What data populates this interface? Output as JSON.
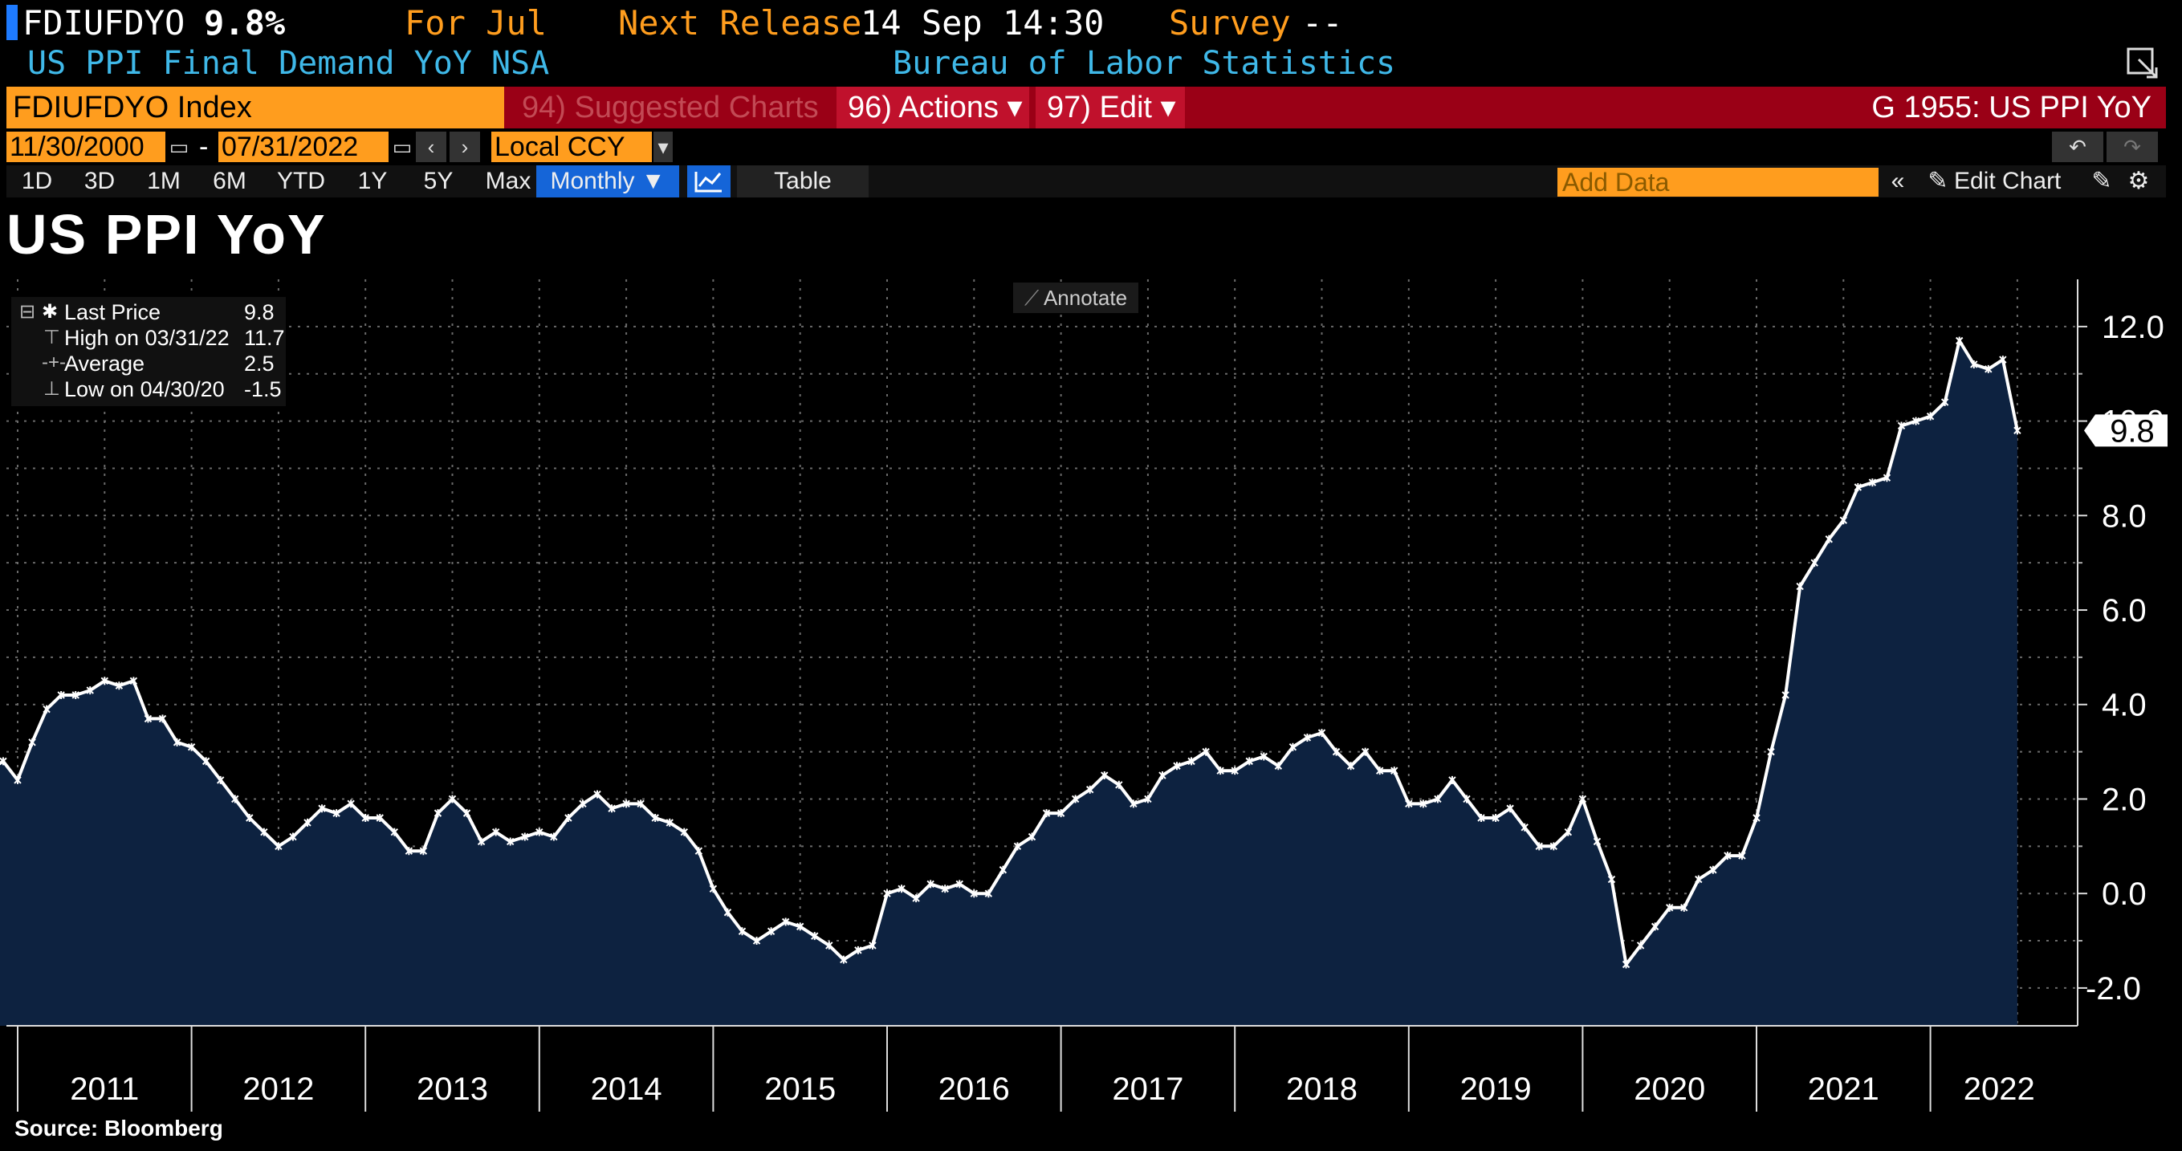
{
  "header": {
    "ticker": "FDIUFDYO",
    "last_value": "9.8%",
    "for_label": "For Jul",
    "next_release_label": "Next Release",
    "next_release_value": "14 Sep 14:30",
    "survey_label": "Survey",
    "survey_value": "--",
    "description": "US PPI Final Demand YoY NSA",
    "source_org": "Bureau of Labor Statistics"
  },
  "tabs": {
    "index": "FDIUFDYO Index",
    "suggested": "94) Suggested Charts",
    "actions": "96) Actions ▾",
    "edit": "97) Edit ▾",
    "chart_id": "G 1955: US PPI YoY"
  },
  "dates": {
    "start": "11/30/2000",
    "sep": "-",
    "end": "07/31/2022",
    "currency": "Local CCY"
  },
  "periods": [
    "1D",
    "3D",
    "1M",
    "6M",
    "YTD",
    "1Y",
    "5Y",
    "Max"
  ],
  "frequency": "Monthly ▼",
  "table_label": "Table",
  "add_data_placeholder": "Add Data",
  "edit_chart_label": "Edit Chart",
  "annotate_label": "Annotate",
  "source": "Source: Bloomberg",
  "legend": {
    "last_price_label": "Last Price",
    "last_price_value": "9.8",
    "high_label": "High on 03/31/22",
    "high_value": "11.7",
    "average_label": "Average",
    "average_value": "2.5",
    "low_label": "Low on 04/30/20",
    "low_value": "-1.5"
  },
  "colors": {
    "line": "#ffffff",
    "area_fill": "#0d2240",
    "grid": "#6a6a6a",
    "orange": "#ff9d1e",
    "cyan": "#3fb8e8",
    "tab_red": "#9a0016"
  },
  "chart_data": {
    "type": "area",
    "title": "US PPI YoY",
    "frequency": "monthly",
    "start": "2010-11",
    "end": "2022-07",
    "ylim": [
      -2.8,
      13.0
    ],
    "yticks": [
      "12.0",
      "10.0",
      "8.0",
      "6.0",
      "4.0",
      "2.0",
      "0.0",
      "-2.0"
    ],
    "xticks": [
      "2011",
      "2012",
      "2013",
      "2014",
      "2015",
      "2016",
      "2017",
      "2018",
      "2019",
      "2020",
      "2021",
      "2022"
    ],
    "last_label": "9.8",
    "series": [
      {
        "values": [
          2.6,
          2.8,
          2.4,
          3.2,
          3.9,
          4.2,
          4.2,
          4.3,
          4.5,
          4.4,
          4.5,
          3.7,
          3.7,
          3.2,
          3.1,
          2.8,
          2.4,
          2.0,
          1.6,
          1.3,
          1.0,
          1.2,
          1.5,
          1.8,
          1.7,
          1.9,
          1.6,
          1.6,
          1.3,
          0.9,
          0.9,
          1.7,
          2.0,
          1.7,
          1.1,
          1.3,
          1.1,
          1.2,
          1.3,
          1.2,
          1.6,
          1.9,
          2.1,
          1.8,
          1.9,
          1.9,
          1.6,
          1.5,
          1.3,
          0.9,
          0.1,
          -0.4,
          -0.8,
          -1.0,
          -0.8,
          -0.6,
          -0.7,
          -0.9,
          -1.1,
          -1.4,
          -1.2,
          -1.1,
          0.0,
          0.1,
          -0.1,
          0.2,
          0.1,
          0.2,
          0.0,
          0.0,
          0.5,
          1.0,
          1.2,
          1.7,
          1.7,
          2.0,
          2.2,
          2.5,
          2.3,
          1.9,
          2.0,
          2.5,
          2.7,
          2.8,
          3.0,
          2.6,
          2.6,
          2.8,
          2.9,
          2.7,
          3.1,
          3.3,
          3.4,
          3.0,
          2.7,
          3.0,
          2.6,
          2.6,
          1.9,
          1.9,
          2.0,
          2.4,
          2.0,
          1.6,
          1.6,
          1.8,
          1.4,
          1.0,
          1.0,
          1.3,
          2.0,
          1.1,
          0.3,
          -1.5,
          -1.1,
          -0.7,
          -0.3,
          -0.3,
          0.3,
          0.5,
          0.8,
          0.8,
          1.6,
          3.0,
          4.2,
          6.5,
          7.0,
          7.5,
          7.9,
          8.6,
          8.7,
          8.8,
          9.9,
          10.0,
          10.1,
          10.4,
          11.7,
          11.2,
          11.1,
          11.3,
          9.8
        ]
      }
    ]
  }
}
